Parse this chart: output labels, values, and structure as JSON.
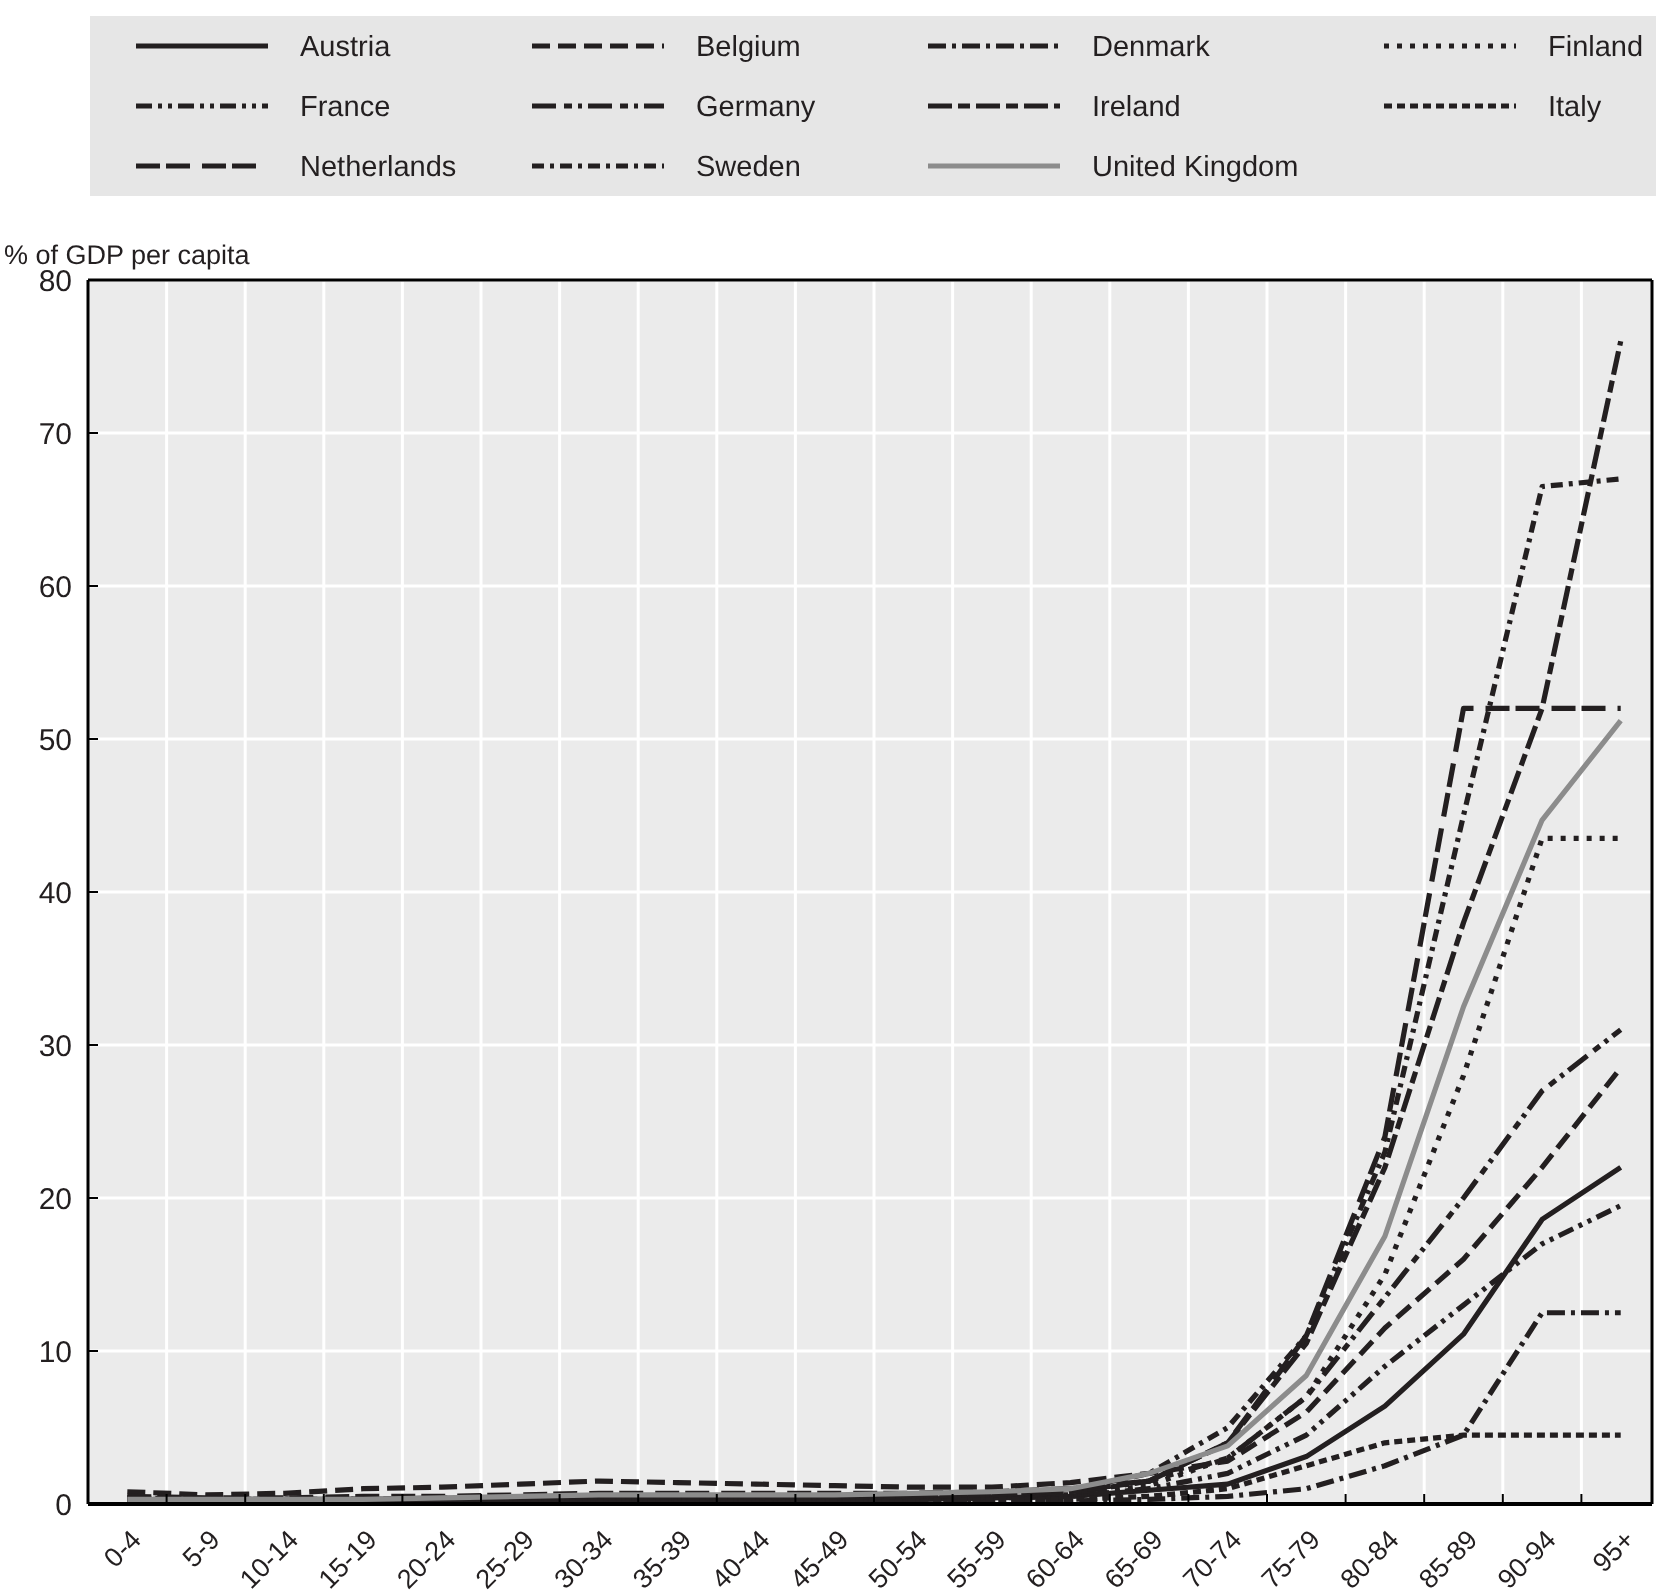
{
  "chart_data": {
    "type": "line",
    "ylabel": "% of GDP per capita",
    "categories": [
      "0-4",
      "5-9",
      "10-14",
      "15-19",
      "20-24",
      "25-29",
      "30-34",
      "35-39",
      "40-44",
      "45-49",
      "50-54",
      "55-59",
      "60-64",
      "65-69",
      "70-74",
      "75-79",
      "80-84",
      "85-89",
      "90-94",
      "95+"
    ],
    "ylim": [
      0,
      80
    ],
    "yticks": [
      0,
      10,
      20,
      30,
      40,
      50,
      60,
      70,
      80
    ],
    "grid": true,
    "legend": "top",
    "series": [
      {
        "name": "Austria",
        "color": "#231f20",
        "line_style": "solid",
        "values": [
          0.3,
          0.2,
          0.2,
          0.2,
          0.2,
          0.3,
          0.3,
          0.3,
          0.3,
          0.3,
          0.3,
          0.4,
          0.5,
          0.9,
          1.3,
          3.1,
          6.4,
          11.1,
          18.6,
          22
        ]
      },
      {
        "name": "Belgium",
        "color": "#231f20",
        "line_style": "dashed",
        "values": [
          0.8,
          0.6,
          0.7,
          1.0,
          1.1,
          1.3,
          1.5,
          1.4,
          1.3,
          1.2,
          1.1,
          1.1,
          1.4,
          2.0,
          2.8,
          6,
          11.5,
          16,
          22,
          28.5
        ]
      },
      {
        "name": "Denmark",
        "color": "#231f20",
        "line_style": "dashed",
        "values": [
          0.1,
          0.1,
          0.1,
          0.1,
          0.1,
          0.1,
          0.1,
          0.1,
          0.1,
          0.1,
          0.1,
          0.1,
          0.2,
          0.3,
          0.5,
          1,
          2.5,
          4.5,
          12.5,
          12.5
        ]
      },
      {
        "name": "Finland",
        "color": "#231f20",
        "line_style": "dotted",
        "values": [
          0.3,
          0.3,
          0.3,
          0.3,
          0.3,
          0.4,
          0.4,
          0.4,
          0.4,
          0.4,
          0.5,
          0.5,
          0.6,
          1.2,
          3,
          7,
          15,
          28,
          43.5,
          43.5
        ]
      },
      {
        "name": "France",
        "color": "#231f20",
        "line_style": "dashed",
        "values": [
          0.2,
          0.2,
          0.2,
          0.2,
          0.2,
          0.3,
          0.3,
          0.3,
          0.3,
          0.3,
          0.3,
          0.4,
          0.5,
          1,
          2,
          4.5,
          9,
          13,
          17,
          19.5
        ]
      },
      {
        "name": "Germany",
        "color": "#231f20",
        "line_style": "dashed",
        "values": [
          0.3,
          0.3,
          0.3,
          0.3,
          0.4,
          0.4,
          0.4,
          0.4,
          0.4,
          0.4,
          0.5,
          0.5,
          0.7,
          1.5,
          3,
          7,
          13.5,
          20,
          27,
          31
        ]
      },
      {
        "name": "Ireland",
        "color": "#231f20",
        "line_style": "dashed",
        "values": [
          0.4,
          0.3,
          0.3,
          0.3,
          0.3,
          0.4,
          0.4,
          0.4,
          0.4,
          0.5,
          0.5,
          0.6,
          0.8,
          1.5,
          4,
          10.5,
          22,
          38,
          52,
          76
        ]
      },
      {
        "name": "Italy",
        "color": "#231f20",
        "line_style": "dashed",
        "values": [
          0.2,
          0.2,
          0.2,
          0.2,
          0.2,
          0.2,
          0.2,
          0.2,
          0.2,
          0.2,
          0.2,
          0.3,
          0.3,
          0.5,
          1,
          2.5,
          4,
          4.5,
          4.5,
          4.5
        ]
      },
      {
        "name": "Netherlands",
        "color": "#231f20",
        "line_style": "dashed",
        "values": [
          0.5,
          0.4,
          0.4,
          0.5,
          0.5,
          0.6,
          0.7,
          0.7,
          0.7,
          0.7,
          0.7,
          0.8,
          1.0,
          1.5,
          4,
          11,
          24,
          52,
          52,
          52
        ]
      },
      {
        "name": "Sweden",
        "color": "#231f20",
        "line_style": "dashed",
        "values": [
          0.4,
          0.3,
          0.3,
          0.3,
          0.3,
          0.4,
          0.4,
          0.4,
          0.4,
          0.5,
          0.5,
          0.6,
          0.9,
          2,
          5,
          11,
          23,
          45,
          66.5,
          67
        ]
      },
      {
        "name": "United Kingdom",
        "color": "#8c8c8c",
        "line_style": "solid",
        "values": [
          0.3,
          0.3,
          0.3,
          0.3,
          0.4,
          0.5,
          0.6,
          0.6,
          0.6,
          0.6,
          0.7,
          0.8,
          1.0,
          2.0,
          3.8,
          8.4,
          17.5,
          32.5,
          44.7,
          51.2
        ]
      }
    ]
  }
}
